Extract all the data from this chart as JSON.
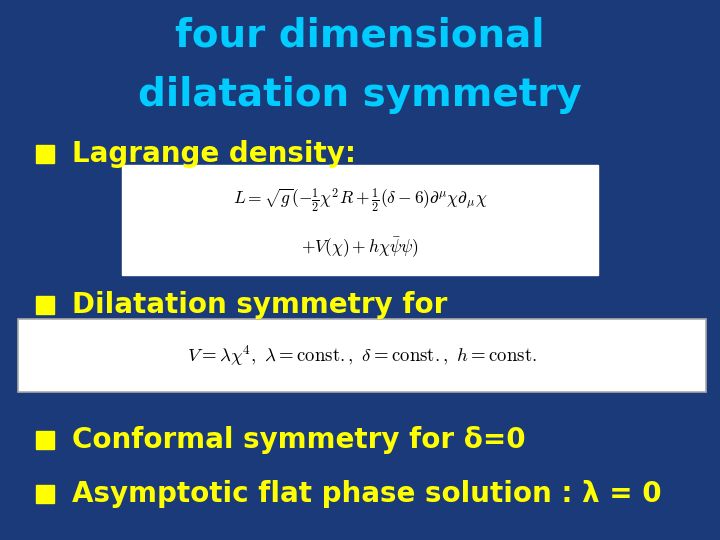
{
  "title_line1": "four dimensional",
  "title_line2": "dilatation symmetry",
  "title_color": "#00CCFF",
  "title_fontsize": 28,
  "bg_color": "#1a3a7a",
  "bullet_color": "#FFFF00",
  "bullet_text_color": "#FFFF00",
  "bullet_fontsize": 20,
  "bullet1": "Lagrange density:",
  "bullet2": "Dilatation symmetry for",
  "bullet3": "Conformal symmetry for δ=0",
  "bullet4": "Asymptotic flat phase solution : λ = 0",
  "formula_bg": "#ffffff",
  "formula_text_color": "#000000",
  "formula1a": "$L = \\sqrt{g}(-\\frac{1}{2}\\chi^2 R + \\frac{1}{2}(\\delta - 6)\\partial^{\\mu}\\chi\\partial_{\\mu}\\chi$",
  "formula1b": "$+V(\\chi) + h\\chi\\bar{\\psi}\\psi)$",
  "formula2": "$V = \\lambda\\chi^4,\\ \\lambda = \\mathrm{const.},\\ \\delta = \\mathrm{const.},\\ h = \\mathrm{const.}$"
}
